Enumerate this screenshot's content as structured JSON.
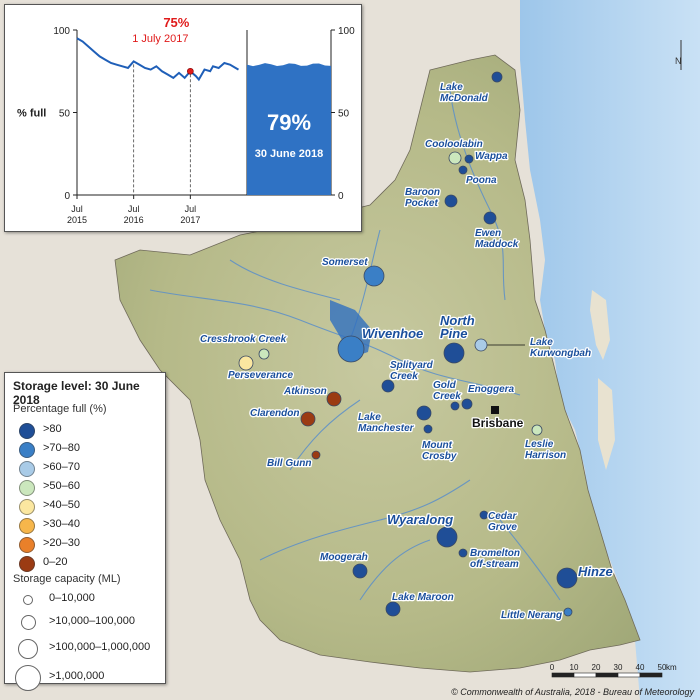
{
  "chart_data": {
    "type": "line",
    "title": "",
    "ylabel": "% full",
    "right_axis_ticks": [
      "100",
      "50",
      "0"
    ],
    "y_ticks": [
      "100",
      "50",
      "0"
    ],
    "ylim": [
      0,
      100
    ],
    "x_ticks": [
      {
        "line1": "Jul",
        "line2": "2015"
      },
      {
        "line1": "Jul",
        "line2": "2016"
      },
      {
        "line1": "Jul",
        "line2": "2017"
      }
    ],
    "series": [
      {
        "points": [
          [
            0,
            95
          ],
          [
            0.1,
            93
          ],
          [
            0.2,
            90
          ],
          [
            0.3,
            87
          ],
          [
            0.4,
            84
          ],
          [
            0.5,
            82
          ],
          [
            0.6,
            80
          ],
          [
            0.7,
            79
          ],
          [
            0.8,
            78
          ],
          [
            0.9,
            77
          ],
          [
            1.0,
            81
          ],
          [
            1.1,
            79
          ],
          [
            1.2,
            77
          ],
          [
            1.3,
            76
          ],
          [
            1.4,
            78
          ],
          [
            1.5,
            75
          ],
          [
            1.6,
            73
          ],
          [
            1.7,
            71
          ],
          [
            1.8,
            74
          ],
          [
            1.9,
            71
          ],
          [
            2.0,
            75
          ],
          [
            2.1,
            72
          ],
          [
            2.15,
            70
          ],
          [
            2.25,
            76
          ],
          [
            2.35,
            75
          ],
          [
            2.4,
            78
          ],
          [
            2.5,
            77
          ],
          [
            2.6,
            80
          ],
          [
            2.7,
            79
          ],
          [
            2.8,
            77
          ],
          [
            2.85,
            76
          ]
        ]
      }
    ],
    "highlight": {
      "value_label": "75%",
      "date_label": "1 July 2017",
      "x": 2.0,
      "y": 75,
      "color": "#e01b1b"
    },
    "current": {
      "value": 79,
      "value_label": "79%",
      "date_label": "30 June 2018",
      "color": "#2f72c4"
    }
  },
  "legend": {
    "title": "Storage level: 30 June 2018",
    "percent_heading": "Percentage full (%)",
    "percent_classes": [
      {
        "label": ">80",
        "color": "#1f4e97"
      },
      {
        "label": ">70–80",
        "color": "#3a7fc6"
      },
      {
        "label": ">60–70",
        "color": "#a9cbe7"
      },
      {
        "label": ">50–60",
        "color": "#cbe7bd"
      },
      {
        "label": ">40–50",
        "color": "#fbe7a0"
      },
      {
        "label": ">30–40",
        "color": "#f6b64b"
      },
      {
        "label": ">20–30",
        "color": "#e9802a"
      },
      {
        "label": "0–20",
        "color": "#9b3b13"
      }
    ],
    "capacity_heading": "Storage capacity (ML)",
    "capacity_classes": [
      {
        "label": "0–10,000"
      },
      {
        "label": ">10,000–100,000"
      },
      {
        "label": ">100,000–1,000,000"
      },
      {
        "label": ">1,000,000"
      }
    ]
  },
  "storages": [
    {
      "name": "Lake McDonald",
      "class": ">80"
    },
    {
      "name": "Cooloolabin",
      "class": ">50–60"
    },
    {
      "name": "Wappa",
      "class": ">80"
    },
    {
      "name": "Poona",
      "class": ">80"
    },
    {
      "name": "Baroon Pocket",
      "class": ">80"
    },
    {
      "name": "Ewen Maddock",
      "class": ">80"
    },
    {
      "name": "Somerset",
      "class": ">70–80"
    },
    {
      "name": "Wivenhoe",
      "class": ">70–80"
    },
    {
      "name": "North Pine",
      "class": ">80"
    },
    {
      "name": "Lake Kurwongbah",
      "class": ">60–70"
    },
    {
      "name": "Cressbrook Creek",
      "class": ">50–60"
    },
    {
      "name": "Perseverance",
      "class": ">40–50"
    },
    {
      "name": "Atkinson",
      "class": "0–20"
    },
    {
      "name": "Clarendon",
      "class": "0–20"
    },
    {
      "name": "Splityard Creek",
      "class": ">80"
    },
    {
      "name": "Gold Creek",
      "class": ">80"
    },
    {
      "name": "Enoggera",
      "class": ">80"
    },
    {
      "name": "Lake Manchester",
      "class": ">80"
    },
    {
      "name": "Mount Crosby",
      "class": ">80"
    },
    {
      "name": "Leslie Harrison",
      "class": ">50–60"
    },
    {
      "name": "Bill Gunn",
      "class": "0–20"
    },
    {
      "name": "Wyaralong",
      "class": ">80"
    },
    {
      "name": "Cedar Grove",
      "class": ">80"
    },
    {
      "name": "Bromelton off-stream",
      "class": ">80"
    },
    {
      "name": "Moogerah",
      "class": ">80"
    },
    {
      "name": "Hinze",
      "class": ">80"
    },
    {
      "name": "Lake Maroon",
      "class": ">80"
    },
    {
      "name": "Little Nerang",
      "class": ">70–80"
    }
  ],
  "city": {
    "name": "Brisbane"
  },
  "scale": {
    "ticks": [
      "0",
      "10",
      "20",
      "30",
      "40",
      "50"
    ],
    "unit": "km"
  },
  "north_label": "N",
  "copyright": "© Commonwealth of Australia, 2018 - Bureau of Meteorology"
}
